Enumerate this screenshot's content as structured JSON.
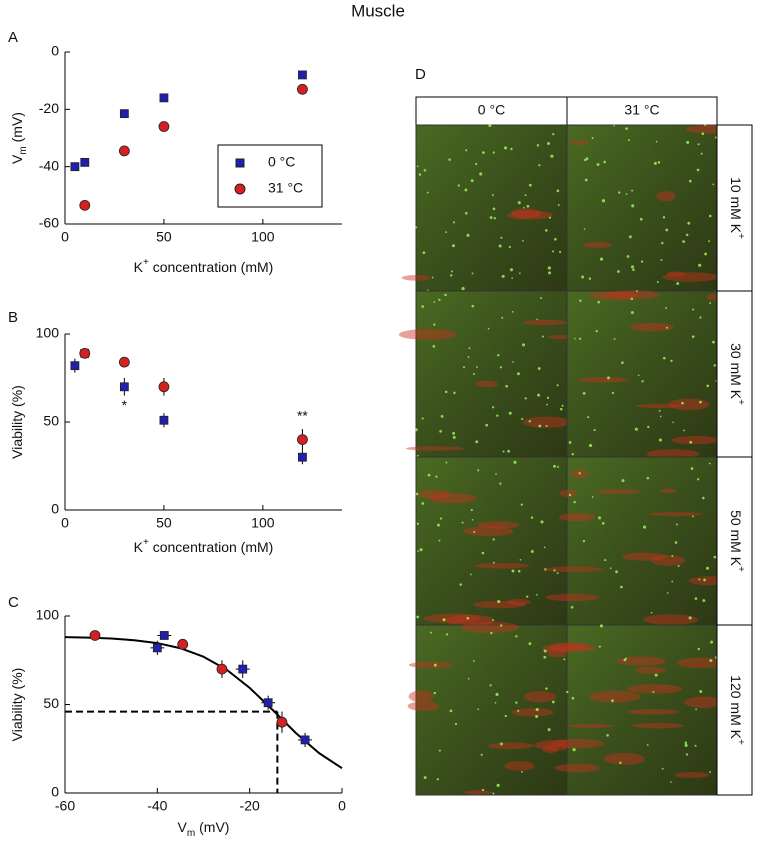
{
  "title": "Muscle",
  "chart_data": [
    {
      "type": "scatter",
      "label": "A",
      "xlabel": [
        "K",
        "+",
        " concentration (mM)"
      ],
      "ylabel": [
        "V",
        "m",
        " (mV)"
      ],
      "xlim": [
        0,
        140
      ],
      "xticks": [
        0,
        50,
        100
      ],
      "ylim": [
        -60,
        0
      ],
      "yticks": [
        -60,
        -40,
        -20,
        0
      ],
      "legend": true,
      "series": [
        {
          "name": "0 °C",
          "color": "#1f1fb0",
          "marker": "square",
          "x": [
            5,
            10,
            30,
            50,
            120
          ],
          "values": [
            -40,
            -38.5,
            -21.5,
            -16,
            -8
          ]
        },
        {
          "name": "31 °C",
          "color": "#d42020",
          "marker": "circle",
          "x": [
            10,
            30,
            50,
            120
          ],
          "values": [
            -53.5,
            -34.5,
            -26,
            -13
          ]
        }
      ]
    },
    {
      "type": "scatter",
      "label": "B",
      "xlabel": [
        "K",
        "+",
        " concentration (mM)"
      ],
      "ylabel": [
        "Viability (%)"
      ],
      "xlim": [
        0,
        140
      ],
      "xticks": [
        0,
        50,
        100
      ],
      "ylim": [
        0,
        100
      ],
      "yticks": [
        0,
        50,
        100
      ],
      "legend": false,
      "series": [
        {
          "name": "0 °C",
          "color": "#1f1fb0",
          "marker": "square",
          "x": [
            5,
            10,
            30,
            50,
            120
          ],
          "values": [
            82,
            89,
            70,
            51,
            30
          ],
          "errors": [
            4,
            2,
            5,
            4,
            4
          ]
        },
        {
          "name": "31 °C",
          "color": "#d42020",
          "marker": "circle",
          "x": [
            10,
            30,
            50,
            120
          ],
          "values": [
            89,
            84,
            70,
            40
          ],
          "errors": [
            2,
            2,
            5,
            6
          ]
        }
      ],
      "annotations": [
        {
          "text": "*",
          "x": 30,
          "y": 59
        },
        {
          "text": "**",
          "x": 120,
          "y": 53
        }
      ]
    },
    {
      "type": "scatter",
      "label": "C",
      "xlabel": [
        "V",
        "m",
        "  (mV)"
      ],
      "ylabel": [
        "Viability (%)"
      ],
      "xlim": [
        -60,
        0
      ],
      "xticks": [
        -60,
        -40,
        -20,
        0
      ],
      "ylim": [
        0,
        100
      ],
      "yticks": [
        0,
        50,
        100
      ],
      "legend": false,
      "series": [
        {
          "name": "0 °C",
          "color": "#1f1fb0",
          "marker": "square",
          "x": [
            -40,
            -38.5,
            -21.5,
            -16,
            -8
          ],
          "values": [
            82,
            89,
            70,
            51,
            30
          ],
          "errors": [
            4,
            2,
            5,
            4,
            4
          ],
          "x_errors": [
            1.5,
            1.5,
            1.5,
            1.5,
            1.5
          ]
        },
        {
          "name": "31 °C",
          "color": "#d42020",
          "marker": "circle",
          "x": [
            -53.5,
            -34.5,
            -26,
            -13
          ],
          "values": [
            89,
            84,
            70,
            40
          ],
          "errors": [
            2,
            2,
            5,
            6
          ]
        }
      ],
      "fit": {
        "x": [
          -60,
          -55,
          -50,
          -45,
          -40,
          -35,
          -30,
          -25,
          -20,
          -15,
          -10,
          -5,
          0
        ],
        "values": [
          88.1,
          87.8,
          87.3,
          86.3,
          84.7,
          81.8,
          77.0,
          69.7,
          59.4,
          46.9,
          33.9,
          22.6,
          14.0
        ]
      },
      "threshold": {
        "x": -14,
        "y": 46
      }
    }
  ],
  "image_panel": {
    "label": "D",
    "columns": [
      "0 °C",
      "31 °C"
    ],
    "rows": [
      [
        "10 mM K",
        "+"
      ],
      [
        "30 mM K",
        "+"
      ],
      [
        "50 mM K",
        "+"
      ],
      [
        "120 mM K",
        "+"
      ]
    ]
  }
}
